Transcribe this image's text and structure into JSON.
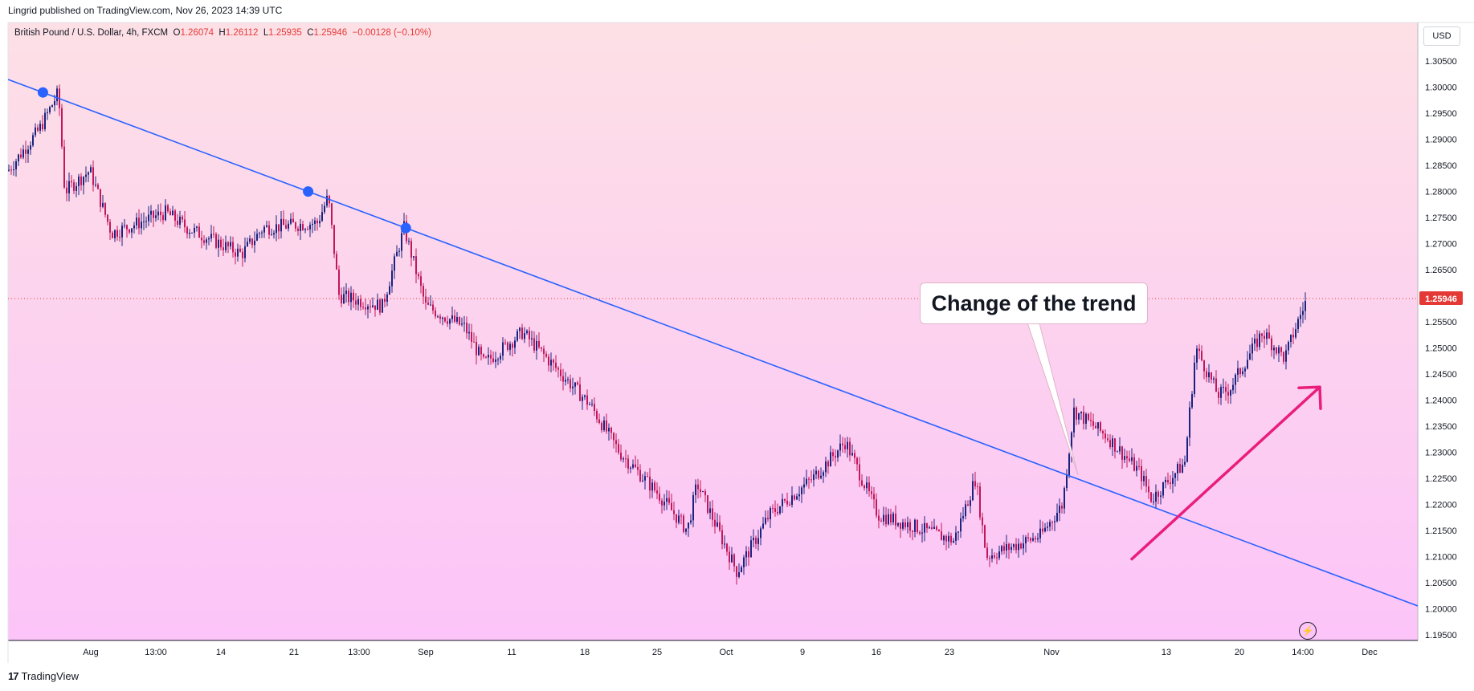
{
  "header": {
    "published": "Lingrid published on TradingView.com, Nov 26, 2023 14:39 UTC"
  },
  "legend": {
    "symbol": "British Pound / U.S. Dollar, 4h, FXCM",
    "o_label": "O",
    "o_value": "1.26074",
    "h_label": "H",
    "h_value": "1.26112",
    "l_label": "L",
    "l_value": "1.25935",
    "c_label": "C",
    "c_value": "1.25946",
    "change": "−0.00128 (−0.10%)"
  },
  "price_axis": {
    "currency": "USD",
    "current_price": "1.25946"
  },
  "annotation": {
    "callout_text": "Change of the trend"
  },
  "footer": {
    "logo_mark": "17",
    "logo_text": "TradingView"
  },
  "colors": {
    "bg_top": "#fde0e6",
    "bg_bottom": "#fcc4f8",
    "trendline": "#2962ff",
    "arrow": "#e91e7c",
    "bull": "#1a237e",
    "bear": "#c2185b",
    "price_label": "#e53935"
  },
  "chart_data": {
    "type": "candlestick",
    "title": "",
    "y_ticks": [
      "1.30500",
      "1.30000",
      "1.29500",
      "1.29000",
      "1.28500",
      "1.28000",
      "1.27500",
      "1.27000",
      "1.26500",
      "1.26000",
      "1.25500",
      "1.25000",
      "1.24500",
      "1.24000",
      "1.23500",
      "1.23000",
      "1.22500",
      "1.22000",
      "1.21500",
      "1.21000",
      "1.20500",
      "1.20000",
      "1.19500"
    ],
    "ylim": [
      1.1945,
      1.3075
    ],
    "x_ticks": [
      "Aug",
      "13:00",
      "14",
      "21",
      "13:00",
      "Sep",
      "11",
      "18",
      "25",
      "Oct",
      "9",
      "16",
      "23",
      "Nov",
      "13",
      "20",
      "14:00",
      "Dec"
    ],
    "price_path": [
      {
        "date": "Jul 19",
        "price": 1.284
      },
      {
        "date": "Jul 24",
        "price": 1.292
      },
      {
        "date": "Jul 27",
        "price": 1.299
      },
      {
        "date": "Jul 28",
        "price": 1.28
      },
      {
        "date": "Aug 1",
        "price": 1.284
      },
      {
        "date": "Aug 3",
        "price": 1.272
      },
      {
        "date": "Aug 8",
        "price": 1.276
      },
      {
        "date": "Aug 10",
        "price": 1.273
      },
      {
        "date": "Aug 15",
        "price": 1.268
      },
      {
        "date": "Aug 17",
        "price": 1.273
      },
      {
        "date": "Aug 22",
        "price": 1.274
      },
      {
        "date": "Aug 23",
        "price": 1.279
      },
      {
        "date": "Aug 24",
        "price": 1.26
      },
      {
        "date": "Aug 28",
        "price": 1.258
      },
      {
        "date": "Aug 30",
        "price": 1.273
      },
      {
        "date": "Sep 1",
        "price": 1.258
      },
      {
        "date": "Sep 5",
        "price": 1.254
      },
      {
        "date": "Sep 7",
        "price": 1.247
      },
      {
        "date": "Sep 11",
        "price": 1.253
      },
      {
        "date": "Sep 14",
        "price": 1.247
      },
      {
        "date": "Sep 18",
        "price": 1.239
      },
      {
        "date": "Sep 21",
        "price": 1.23
      },
      {
        "date": "Sep 25",
        "price": 1.222
      },
      {
        "date": "Sep 28",
        "price": 1.215
      },
      {
        "date": "Sep 29",
        "price": 1.224
      },
      {
        "date": "Oct 3",
        "price": 1.207
      },
      {
        "date": "Oct 6",
        "price": 1.218
      },
      {
        "date": "Oct 10",
        "price": 1.225
      },
      {
        "date": "Oct 13",
        "price": 1.232
      },
      {
        "date": "Oct 16",
        "price": 1.218
      },
      {
        "date": "Oct 19",
        "price": 1.216
      },
      {
        "date": "Oct 23",
        "price": 1.213
      },
      {
        "date": "Oct 25",
        "price": 1.225
      },
      {
        "date": "Oct 26",
        "price": 1.21
      },
      {
        "date": "Oct 31",
        "price": 1.214
      },
      {
        "date": "Nov 2",
        "price": 1.22
      },
      {
        "date": "Nov 3",
        "price": 1.238
      },
      {
        "date": "Nov 6",
        "price": 1.233
      },
      {
        "date": "Nov 9",
        "price": 1.226
      },
      {
        "date": "Nov 10",
        "price": 1.221
      },
      {
        "date": "Nov 13",
        "price": 1.228
      },
      {
        "date": "Nov 14",
        "price": 1.25
      },
      {
        "date": "Nov 16",
        "price": 1.241
      },
      {
        "date": "Nov 17",
        "price": 1.242
      },
      {
        "date": "Nov 20",
        "price": 1.253
      },
      {
        "date": "Nov 22",
        "price": 1.248
      },
      {
        "date": "Nov 23",
        "price": 1.254
      },
      {
        "date": "Nov 24",
        "price": 1.2595
      }
    ],
    "trendline": {
      "points": [
        [
          0.0,
          1.3015
        ],
        [
          1.0,
          1.2005
        ]
      ]
    },
    "trendline_touches": [
      1.299,
      1.28,
      1.273
    ],
    "current_price": 1.25946,
    "arrow": {
      "from": 1.2095,
      "to": 1.2425
    },
    "grid": false,
    "legend_position": "top-left"
  }
}
